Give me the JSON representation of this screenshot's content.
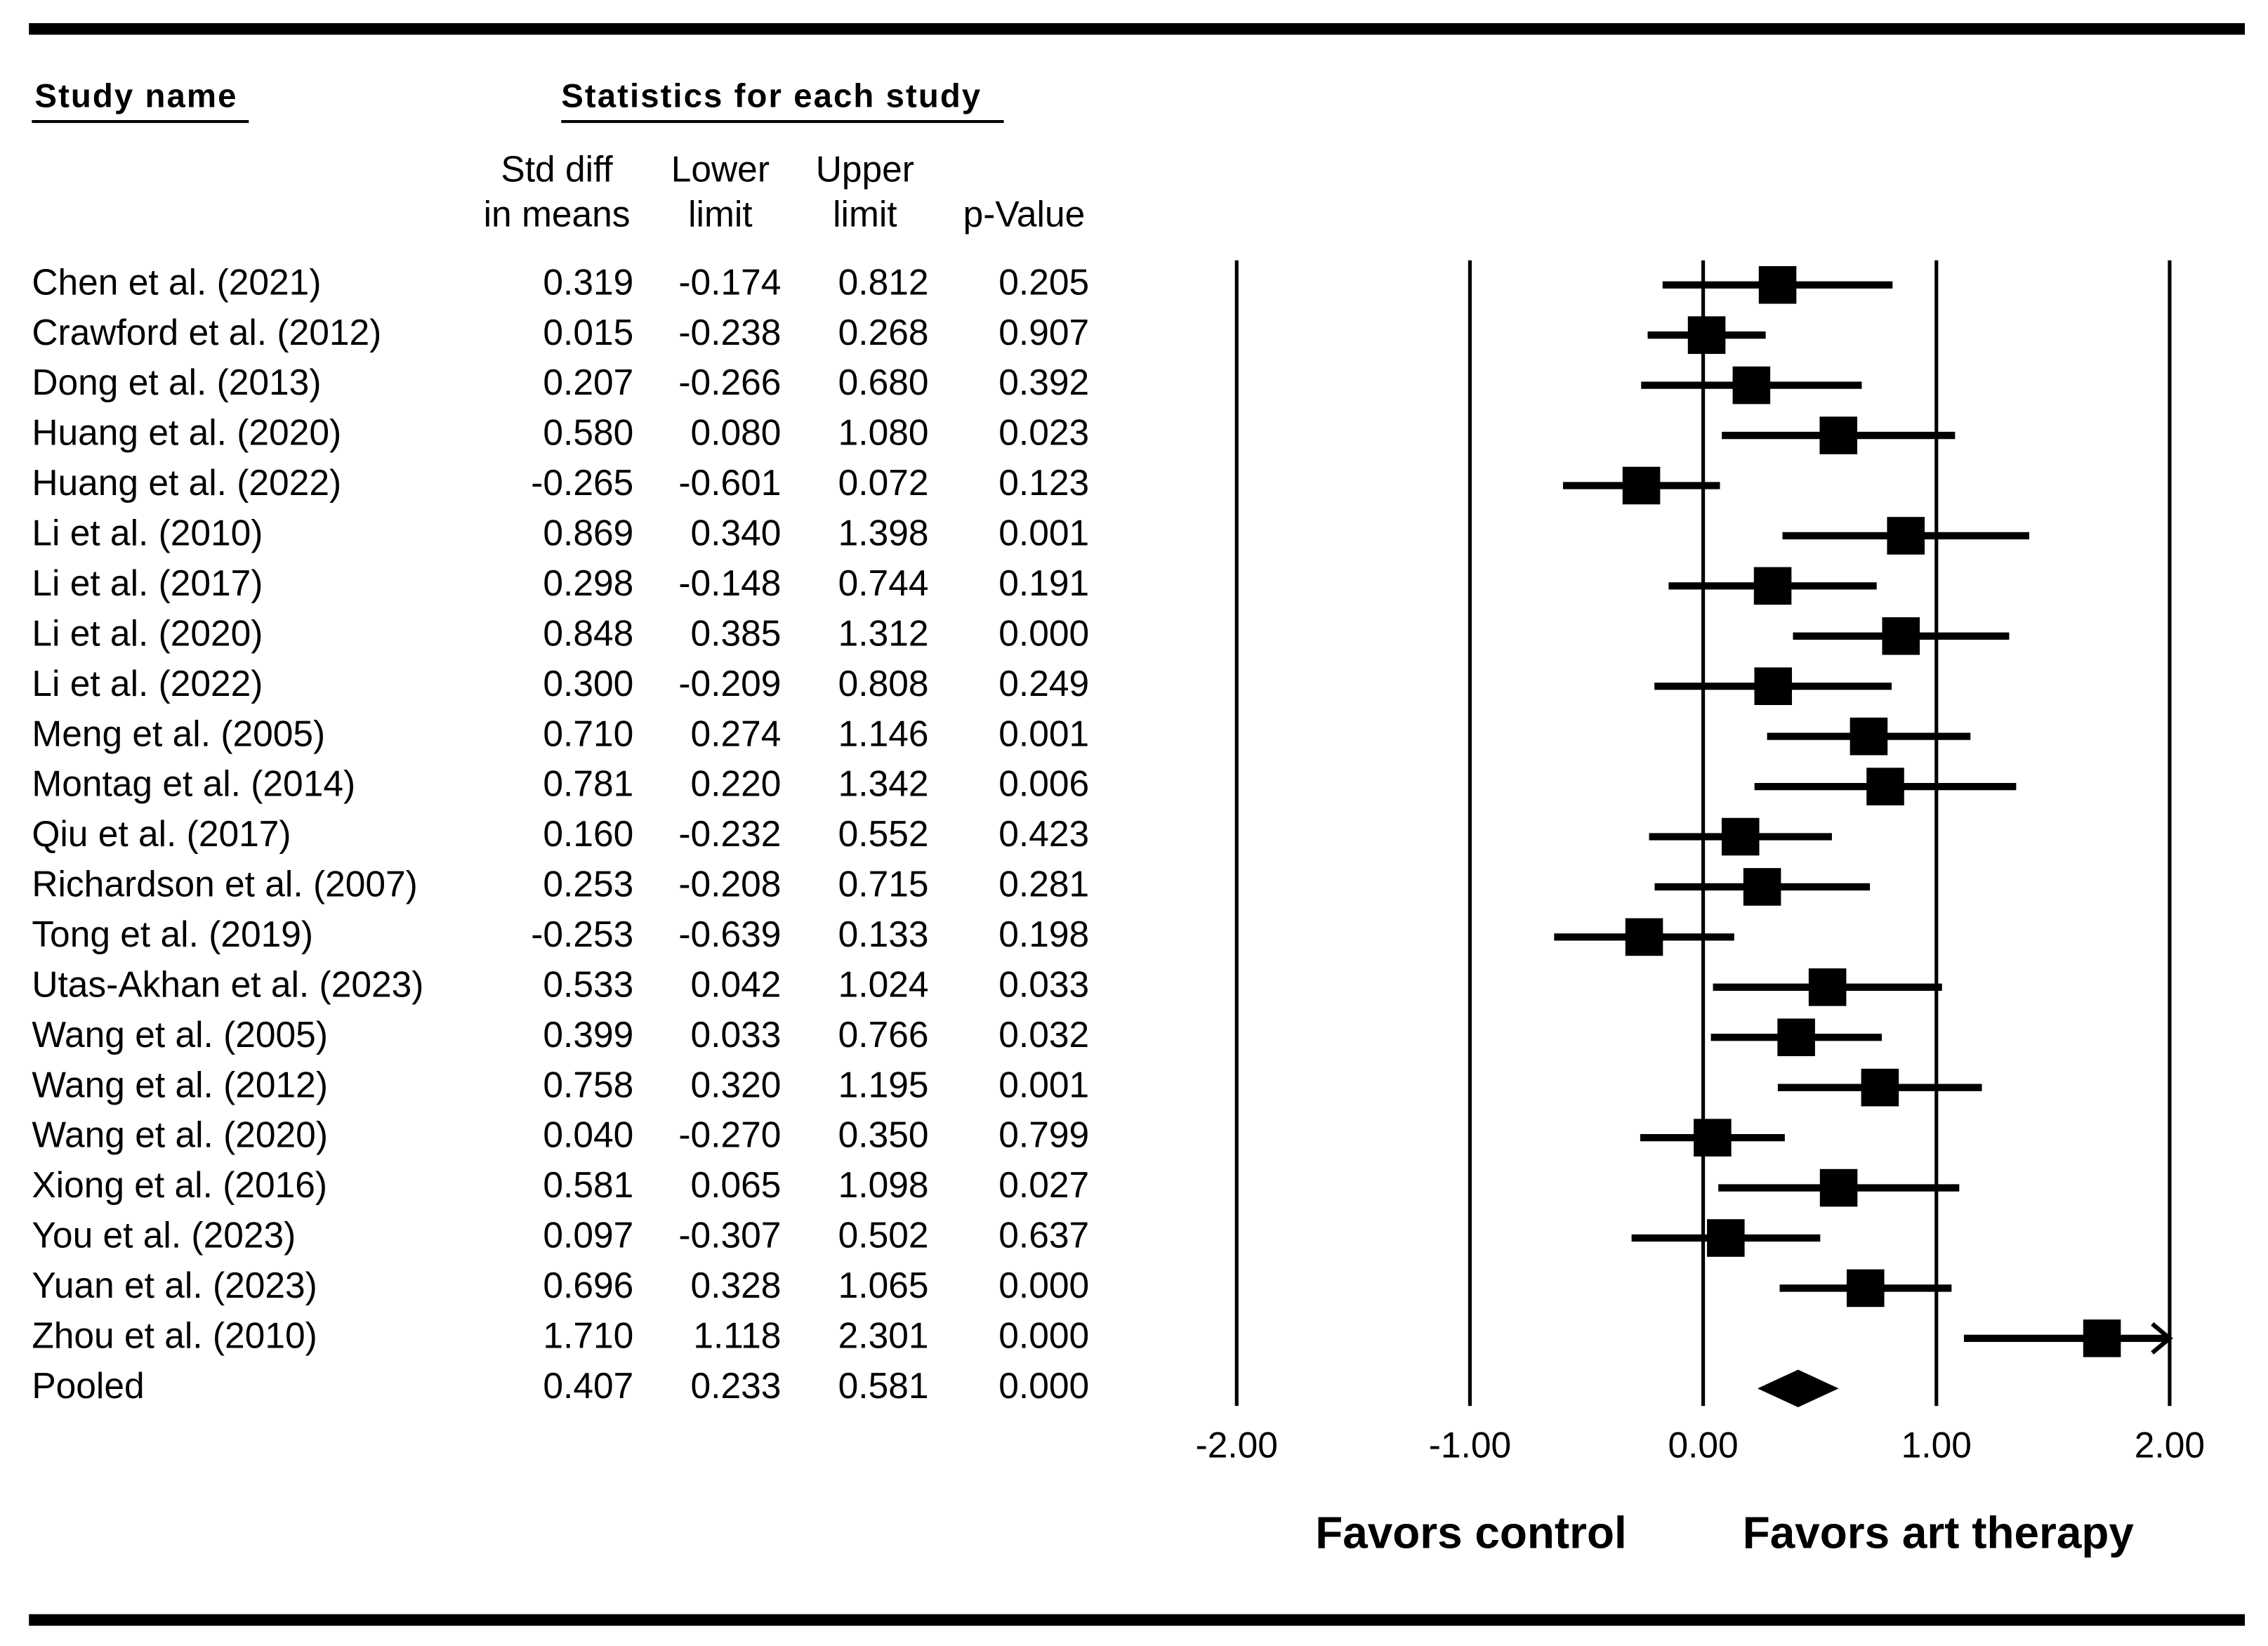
{
  "chart_data": {
    "type": "forest",
    "study_header": "Study name",
    "title": "Statistics for each study",
    "studies": [
      "Chen et al. (2021)",
      "Crawford et al. (2012)",
      "Dong et al. (2013)",
      "Huang et al. (2020)",
      "Huang et al. (2022)",
      "Li et al. (2010)",
      "Li et al. (2017)",
      "Li et al. (2020)",
      "Li et al. (2022)",
      "Meng et al. (2005)",
      "Montag et al. (2014)",
      "Qiu et al. (2017)",
      "Richardson et al. (2007)",
      "Tong et al. (2019)",
      "Utas-Akhan et al. (2023)",
      "Wang et al. (2005)",
      "Wang et al. (2012)",
      "Wang et al. (2020)",
      "Xiong et al. (2016)",
      "You et al. (2023)",
      "Yuan et al. (2023)",
      "Zhou et al. (2010)",
      "Pooled"
    ],
    "columns": [
      {
        "header": [
          "Std diff",
          "in means"
        ],
        "values": [
          0.319,
          0.015,
          0.207,
          0.58,
          -0.265,
          0.869,
          0.298,
          0.848,
          0.3,
          0.71,
          0.781,
          0.16,
          0.253,
          -0.253,
          0.533,
          0.399,
          0.758,
          0.04,
          0.581,
          0.097,
          0.696,
          1.71,
          0.407
        ],
        "value_labels": [
          "0.319",
          "0.015",
          "0.207",
          "0.580",
          "-0.265",
          "0.869",
          "0.298",
          "0.848",
          "0.300",
          "0.710",
          "0.781",
          "0.160",
          "0.253",
          "-0.253",
          "0.533",
          "0.399",
          "0.758",
          "0.040",
          "0.581",
          "0.097",
          "0.696",
          "1.710",
          "0.407"
        ]
      },
      {
        "header": [
          "Lower",
          "limit"
        ],
        "values": [
          -0.174,
          -0.238,
          -0.266,
          0.08,
          -0.601,
          0.34,
          -0.148,
          0.385,
          -0.209,
          0.274,
          0.22,
          -0.232,
          -0.208,
          -0.639,
          0.042,
          0.033,
          0.32,
          -0.27,
          0.065,
          -0.307,
          0.328,
          1.118,
          0.233
        ],
        "value_labels": [
          "-0.174",
          "-0.238",
          "-0.266",
          "0.080",
          "-0.601",
          "0.340",
          "-0.148",
          "0.385",
          "-0.209",
          "0.274",
          "0.220",
          "-0.232",
          "-0.208",
          "-0.639",
          "0.042",
          "0.033",
          "0.320",
          "-0.270",
          "0.065",
          "-0.307",
          "0.328",
          "1.118",
          "0.233"
        ]
      },
      {
        "header": [
          "Upper",
          "limit"
        ],
        "values": [
          0.812,
          0.268,
          0.68,
          1.08,
          0.072,
          1.398,
          0.744,
          1.312,
          0.808,
          1.146,
          1.342,
          0.552,
          0.715,
          0.133,
          1.024,
          0.766,
          1.195,
          0.35,
          1.098,
          0.502,
          1.065,
          2.301,
          0.581
        ],
        "value_labels": [
          "0.812",
          "0.268",
          "0.680",
          "1.080",
          "0.072",
          "1.398",
          "0.744",
          "1.312",
          "0.808",
          "1.146",
          "1.342",
          "0.552",
          "0.715",
          "0.133",
          "1.024",
          "0.766",
          "1.195",
          "0.350",
          "1.098",
          "0.502",
          "1.065",
          "2.301",
          "0.581"
        ]
      },
      {
        "header": [
          "",
          "p-Value"
        ],
        "values": [
          0.205,
          0.907,
          0.392,
          0.023,
          0.123,
          0.001,
          0.191,
          0.0,
          0.249,
          0.001,
          0.006,
          0.423,
          0.281,
          0.198,
          0.033,
          0.032,
          0.001,
          0.799,
          0.027,
          0.637,
          0.0,
          0.0,
          0.0
        ],
        "value_labels": [
          "0.205",
          "0.907",
          "0.392",
          "0.023",
          "0.123",
          "0.001",
          "0.191",
          "0.000",
          "0.249",
          "0.001",
          "0.006",
          "0.423",
          "0.281",
          "0.198",
          "0.033",
          "0.032",
          "0.001",
          "0.799",
          "0.027",
          "0.637",
          "0.000",
          "0.000",
          "0.000"
        ]
      }
    ],
    "xlim": [
      -2,
      2
    ],
    "xticks": [
      {
        "value": -2,
        "label": "-2.00"
      },
      {
        "value": -1,
        "label": "-1.00"
      },
      {
        "value": 0,
        "label": "0.00"
      },
      {
        "value": 1,
        "label": "1.00"
      },
      {
        "value": 2,
        "label": "2.00"
      }
    ],
    "grid": true,
    "xlabel_left": "Favors control",
    "xlabel_right": "Favors art therapy",
    "color": "#000000"
  }
}
